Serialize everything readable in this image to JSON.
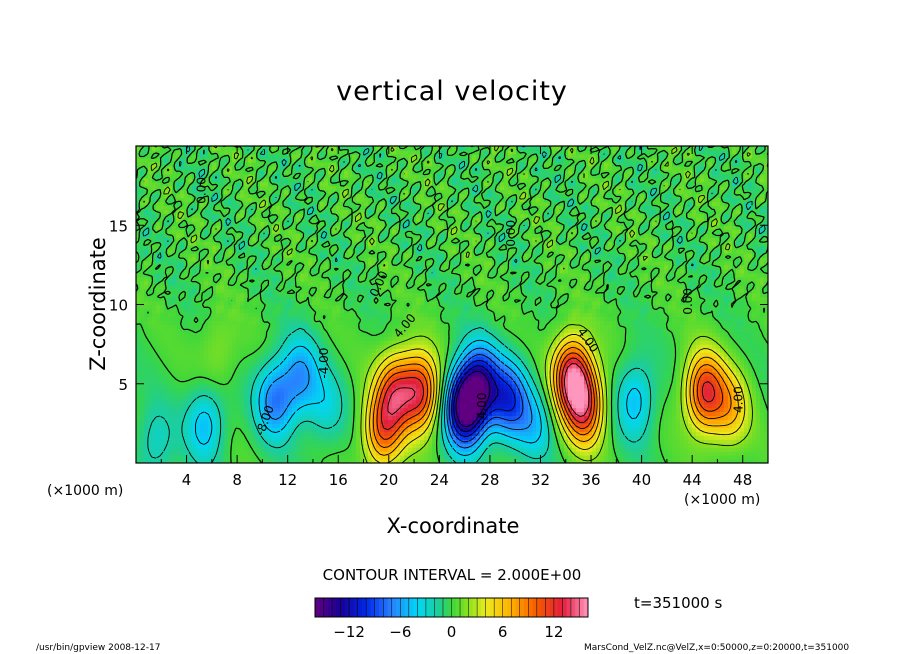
{
  "chart_data": {
    "type": "heatmap",
    "title": "vertical velocity",
    "xlabel": "X-coordinate",
    "ylabel": "Z-coordinate",
    "x_unit": "(×1000 m)",
    "xlim": [
      0,
      50
    ],
    "ylim": [
      0,
      20
    ],
    "x_ticks": [
      4,
      8,
      12,
      16,
      20,
      24,
      28,
      32,
      36,
      40,
      44,
      48
    ],
    "y_ticks": [
      5,
      10,
      15
    ],
    "contour_interval_label": "CONTOUR INTERVAL = 2.000E+00",
    "contour_labels": [
      "0.00",
      "4.00",
      "-4.00",
      "-8.00"
    ],
    "colorbar": {
      "range": [
        -16,
        16
      ],
      "ticks": [
        -12,
        -6,
        0,
        6,
        12
      ],
      "tick_labels": [
        "−12",
        "−6",
        "0",
        "6",
        "12"
      ]
    },
    "features": [
      {
        "x": 1.5,
        "z": 1.2,
        "w": -3
      },
      {
        "x": 5.5,
        "z": 2.5,
        "w": -5
      },
      {
        "x": 6.5,
        "z": 7,
        "w": 2
      },
      {
        "x": 11,
        "z": 4,
        "w": -7
      },
      {
        "x": 13,
        "z": 5.5,
        "w": -6
      },
      {
        "x": 15,
        "z": 3.5,
        "w": -3
      },
      {
        "x": 20.5,
        "z": 4.5,
        "w": 10
      },
      {
        "x": 22.5,
        "z": 4.5,
        "w": 12
      },
      {
        "x": 19.5,
        "z": 2,
        "w": 9
      },
      {
        "x": 26,
        "z": 3.5,
        "w": -16
      },
      {
        "x": 27.3,
        "z": 5,
        "w": -11
      },
      {
        "x": 29.5,
        "z": 4,
        "w": -9
      },
      {
        "x": 31.5,
        "z": 2.5,
        "w": -4
      },
      {
        "x": 34.5,
        "z": 5.5,
        "w": 14
      },
      {
        "x": 35.5,
        "z": 3.5,
        "w": 11
      },
      {
        "x": 39.5,
        "z": 4,
        "w": -5
      },
      {
        "x": 45,
        "z": 4.5,
        "w": 12
      },
      {
        "x": 47,
        "z": 3.5,
        "w": 6
      }
    ],
    "time_label": "t=351000 s"
  },
  "footer": {
    "left": "/usr/bin/gpview  2008-12-17",
    "right": "MarsCond_VelZ.nc@VelZ,x=0:50000,z=0:20000,t=351000"
  }
}
